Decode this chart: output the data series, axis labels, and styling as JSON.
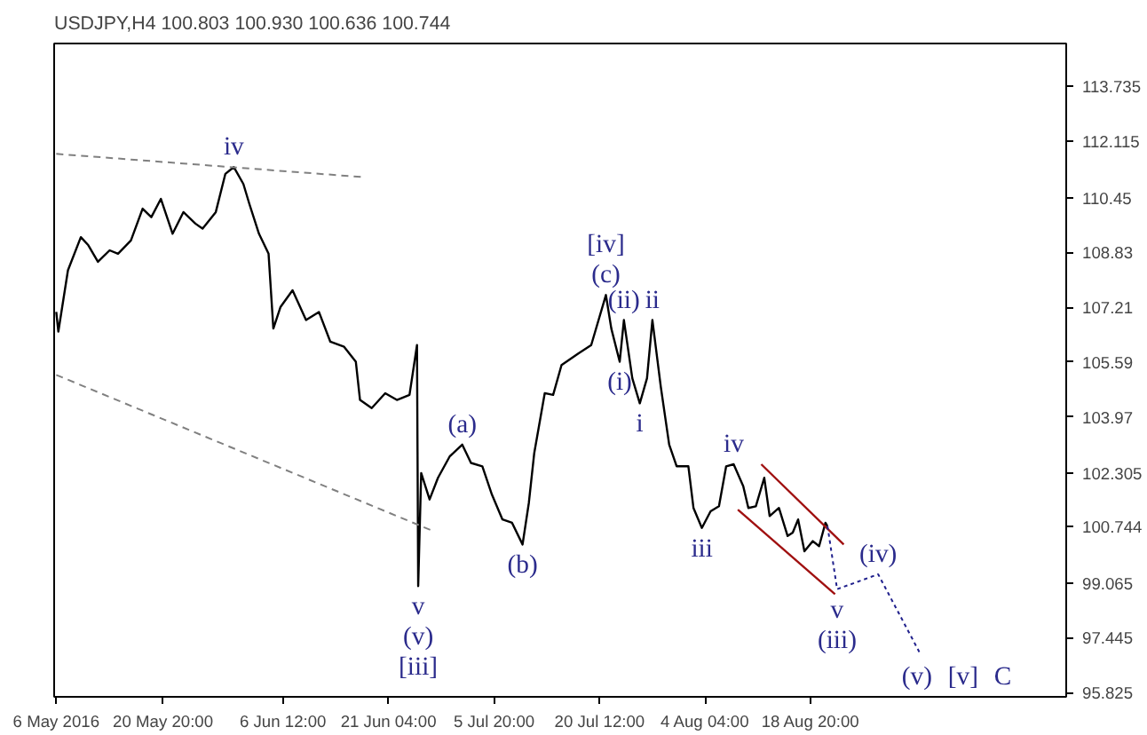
{
  "chart_data": {
    "type": "line",
    "title": "USDJPY,H4  100.803 100.930 100.636 100.744",
    "xlim": [
      "2016-05-05T17:00",
      "2016-09-23T08:00"
    ],
    "ylim": [
      95.7,
      115.0
    ],
    "xticks": [
      {
        "value": "2016-05-06T00:00",
        "label": "6 May 2016"
      },
      {
        "value": "2016-05-20T20:00",
        "label": "20 May 20:00"
      },
      {
        "value": "2016-06-06T12:00",
        "label": "6 Jun 12:00"
      },
      {
        "value": "2016-06-21T04:00",
        "label": "21 Jun 04:00"
      },
      {
        "value": "2016-07-05T20:00",
        "label": "5 Jul 20:00"
      },
      {
        "value": "2016-07-20T12:00",
        "label": "20 Jul 12:00"
      },
      {
        "value": "2016-08-04T04:00",
        "label": "4 Aug 04:00"
      },
      {
        "value": "2016-08-18T20:00",
        "label": "18 Aug 20:00"
      }
    ],
    "yticks": [
      95.825,
      97.445,
      99.065,
      100.744,
      102.305,
      103.97,
      105.59,
      107.21,
      108.83,
      110.45,
      112.115,
      113.735
    ],
    "grid": false,
    "series": [
      {
        "color": "#000000",
        "line_style": "solid",
        "x": [
          "2016-05-06T00:00",
          "2016-05-06T07:00",
          "2016-05-07T15:00",
          "2016-05-09T10:00",
          "2016-05-10T11:00",
          "2016-05-11T19:00",
          "2016-05-13T10:00",
          "2016-05-14T14:00",
          "2016-05-16T09:00",
          "2016-05-18T00:00",
          "2016-05-19T05:00",
          "2016-05-20T13:00",
          "2016-05-22T04:00",
          "2016-05-23T16:00",
          "2016-05-25T08:00",
          "2016-05-26T08:00",
          "2016-05-28T04:00",
          "2016-05-29T12:00",
          "2016-05-30T16:00",
          "2016-06-01T00:00",
          "2016-06-01T20:00",
          "2016-06-03T04:00",
          "2016-06-04T12:00",
          "2016-06-05T04:00",
          "2016-06-06T04:00",
          "2016-06-07T20:00",
          "2016-06-09T17:00",
          "2016-06-11T12:00",
          "2016-06-13T02:00",
          "2016-06-15T00:00",
          "2016-06-16T15:00",
          "2016-06-17T05:00",
          "2016-06-18T20:00",
          "2016-06-20T17:00",
          "2016-06-22T08:00",
          "2016-06-24T02:00",
          "2016-06-25T03:00",
          "2016-06-25T07:00",
          "2016-06-25T17:00",
          "2016-06-26T21:00",
          "2016-06-28T01:00",
          "2016-06-29T16:00",
          "2016-07-01T10:00",
          "2016-07-02T15:00",
          "2016-07-04T05:00",
          "2016-07-05T13:00",
          "2016-07-07T00:00",
          "2016-07-08T08:00",
          "2016-07-09T19:00",
          "2016-07-10T16:00",
          "2016-07-11T10:00",
          "2016-07-12T21:00",
          "2016-07-14T01:00",
          "2016-07-15T05:00",
          "2016-07-17T14:00",
          "2016-07-19T08:00",
          "2016-07-21T09:00",
          "2016-07-22T03:00",
          "2016-07-23T07:00",
          "2016-07-23T21:00",
          "2016-07-25T01:00",
          "2016-07-26T02:00",
          "2016-07-27T02:00",
          "2016-07-27T20:00",
          "2016-07-29T00:00",
          "2016-07-30T04:00",
          "2016-07-31T05:00",
          "2016-08-01T20:00",
          "2016-08-02T13:00",
          "2016-08-03T17:00",
          "2016-08-04T22:00",
          "2016-08-06T02:00",
          "2016-08-07T02:00",
          "2016-08-08T03:00",
          "2016-08-09T11:00",
          "2016-08-10T04:00",
          "2016-08-11T05:00",
          "2016-08-12T09:00",
          "2016-08-13T03:00",
          "2016-08-14T10:00",
          "2016-08-15T15:00",
          "2016-08-16T08:00",
          "2016-08-17T02:00",
          "2016-08-17T23:00",
          "2016-08-19T03:00",
          "2016-08-20T00:00",
          "2016-08-20T21:00",
          "2016-08-21T04:00"
        ],
        "values": [
          107.07,
          106.49,
          108.3,
          109.28,
          109.04,
          108.55,
          108.89,
          108.79,
          109.18,
          110.12,
          109.87,
          110.41,
          109.38,
          110.02,
          109.68,
          109.53,
          110.02,
          111.15,
          111.35,
          110.85,
          110.26,
          109.38,
          108.79,
          106.58,
          107.22,
          107.71,
          106.83,
          107.07,
          106.19,
          106.04,
          105.6,
          104.47,
          104.23,
          104.67,
          104.47,
          104.62,
          106.09,
          98.97,
          102.31,
          101.53,
          102.17,
          102.8,
          103.15,
          102.61,
          102.51,
          101.67,
          100.94,
          100.84,
          100.2,
          101.43,
          102.9,
          104.67,
          104.62,
          105.5,
          105.85,
          106.09,
          107.57,
          106.58,
          105.6,
          106.83,
          105.11,
          104.37,
          105.11,
          106.83,
          104.86,
          103.15,
          102.51,
          102.51,
          101.28,
          100.69,
          101.18,
          101.33,
          102.51,
          102.57,
          101.92,
          101.28,
          101.33,
          102.17,
          101.04,
          101.28,
          100.45,
          100.55,
          100.94,
          100.0,
          100.3,
          100.15,
          100.84,
          100.74
        ]
      },
      {
        "color": "#808080",
        "line_style": "dashed",
        "x": [
          "2016-05-06T00:00",
          "2016-06-17T19:00"
        ],
        "values": [
          111.74,
          111.05
        ]
      },
      {
        "color": "#808080",
        "line_style": "dashed",
        "x": [
          "2016-05-06T00:00",
          "2016-06-27T08:00"
        ],
        "values": [
          105.21,
          100.6
        ]
      },
      {
        "color": "#a01010",
        "line_style": "solid",
        "x": [
          "2016-08-11T23:00",
          "2016-08-23T10:00"
        ],
        "values": [
          102.57,
          100.2
        ]
      },
      {
        "color": "#a01010",
        "line_style": "solid",
        "x": [
          "2016-08-08T17:00",
          "2016-08-22T05:00"
        ],
        "values": [
          101.23,
          98.73
        ]
      },
      {
        "color": "#20208c",
        "line_style": "dotted",
        "x": [
          "2016-08-21T04:00",
          "2016-08-22T12:00",
          "2016-08-28T05:00",
          "2016-09-02T23:00"
        ],
        "values": [
          100.74,
          98.88,
          99.32,
          97.01
        ]
      }
    ],
    "annotations": [
      {
        "text": "iv",
        "x": "2016-05-30T16:00",
        "y": 111.35
      },
      {
        "text": "(c)",
        "x": "2016-07-21T09:00",
        "y": 107.57
      },
      {
        "text": "[iv]",
        "x": "2016-07-21T09:00",
        "y": 107.57
      },
      {
        "text": "(ii)",
        "x": "2016-07-23T21:00",
        "y": 106.83
      },
      {
        "text": "ii",
        "x": "2016-07-27T20:00",
        "y": 106.83
      },
      {
        "text": "(i)",
        "x": "2016-07-23T07:00",
        "y": 105.6
      },
      {
        "text": "i",
        "x": "2016-07-26T02:00",
        "y": 104.37
      },
      {
        "text": "(a)",
        "x": "2016-07-01T10:00",
        "y": 103.15
      },
      {
        "text": "(b)",
        "x": "2016-07-09T19:00",
        "y": 100.2
      },
      {
        "text": "v",
        "x": "2016-06-25T07:00",
        "y": 98.97
      },
      {
        "text": "(v)",
        "x": "2016-06-25T07:00",
        "y": 98.97
      },
      {
        "text": "[iii]",
        "x": "2016-06-25T07:00",
        "y": 98.97
      },
      {
        "text": "iii",
        "x": "2016-08-03T17:00",
        "y": 100.69
      },
      {
        "text": "iv",
        "x": "2016-08-08T03:00",
        "y": 102.57
      },
      {
        "text": "(iv)",
        "x": "2016-08-28T05:00",
        "y": 99.32
      },
      {
        "text": "v",
        "x": "2016-08-22T12:00",
        "y": 98.88
      },
      {
        "text": "(iii)",
        "x": "2016-08-22T12:00",
        "y": 98.88
      },
      {
        "text": "(v)",
        "x": "2016-09-02T23:00",
        "y": 97.01
      },
      {
        "text": "[v]",
        "x": "2016-09-02T23:00",
        "y": 97.01
      },
      {
        "text": "C",
        "x": "2016-09-02T23:00",
        "y": 97.01
      }
    ]
  }
}
